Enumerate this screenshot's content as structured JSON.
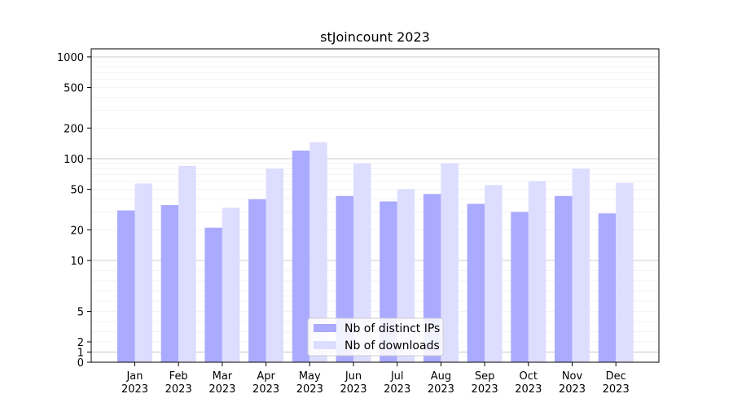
{
  "chart_data": {
    "type": "bar",
    "title": "stJoincount 2023",
    "xlabel": "",
    "ylabel": "",
    "yscale": "symlog",
    "ylim": [
      0,
      1200
    ],
    "yticks": [
      0,
      1,
      2,
      5,
      10,
      20,
      50,
      100,
      200,
      500,
      1000
    ],
    "categories": [
      "Jan\n2023",
      "Feb\n2023",
      "Mar\n2023",
      "Apr\n2023",
      "May\n2023",
      "Jun\n2023",
      "Jul\n2023",
      "Aug\n2023",
      "Sep\n2023",
      "Oct\n2023",
      "Nov\n2023",
      "Dec\n2023"
    ],
    "series": [
      {
        "name": "Nb of distinct IPs",
        "color": "#aaaaff",
        "values": [
          31,
          35,
          21,
          40,
          120,
          43,
          38,
          45,
          36,
          30,
          43,
          29
        ]
      },
      {
        "name": "Nb of downloads",
        "color": "#ddddff",
        "values": [
          57,
          85,
          33,
          80,
          145,
          90,
          50,
          90,
          55,
          60,
          80,
          58
        ]
      }
    ],
    "grid": true,
    "legend": "bottom-center"
  }
}
